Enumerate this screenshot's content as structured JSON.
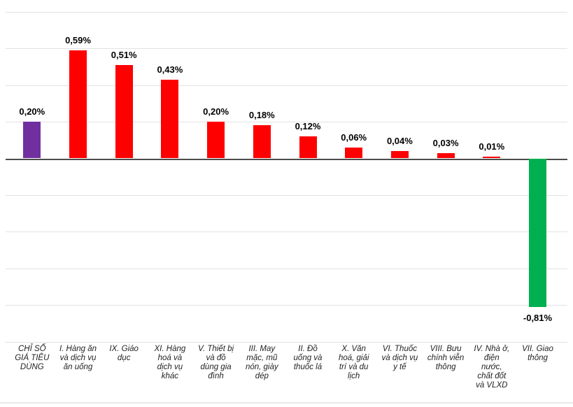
{
  "chart_data": {
    "type": "bar",
    "title": "",
    "xlabel": "",
    "ylabel": "",
    "legend": false,
    "grid": true,
    "ylim": [
      -1.0,
      0.8
    ],
    "gridline_interval": 0.2,
    "unit": "percent",
    "decimal_separator": ",",
    "categories": [
      "CHỈ SỐ\nGIÁ TIÊU\nDÙNG",
      "I. Hàng ăn\nvà dịch vụ\năn uống",
      "IX. Giáo\ndục",
      "XI. Hàng\nhoá và\ndịch vụ\nkhác",
      "V. Thiết bị\nvà đồ\ndùng gia\nđình",
      "III. May\nmặc, mũ\nnón, giày\ndép",
      "II. Đồ\nuống và\nthuốc lá",
      "X. Văn\nhoá, giải\ntrí và du\nlịch",
      "VI. Thuốc\nvà dịch vụ\ny tế",
      "VIII. Bưu\nchính viễn\nthông",
      "IV. Nhà ở,\nđiện\nnước,\nchất đốt\nvà VLXD",
      "VII. Giao\nthông"
    ],
    "values": [
      0.2,
      0.59,
      0.51,
      0.43,
      0.2,
      0.18,
      0.12,
      0.06,
      0.04,
      0.03,
      0.01,
      -0.81
    ],
    "value_labels": [
      "0,20%",
      "0,59%",
      "0,51%",
      "0,43%",
      "0,20%",
      "0,18%",
      "0,12%",
      "0,06%",
      "0,04%",
      "0,03%",
      "0,01%",
      "-0,81%"
    ],
    "bar_colors": [
      "#7030A0",
      "#FF0000",
      "#FF0000",
      "#FF0000",
      "#FF0000",
      "#FF0000",
      "#FF0000",
      "#FF0000",
      "#FF0000",
      "#FF0000",
      "#FF0000",
      "#00B050"
    ],
    "colors": {
      "overall_index": "#7030A0",
      "increase": "#FF0000",
      "decrease": "#00B050",
      "gridline": "#E2E2E2",
      "zero_axis": "#4D4D4D",
      "value_label_text": "#000000",
      "category_label_text": "#1F1F1F"
    }
  }
}
